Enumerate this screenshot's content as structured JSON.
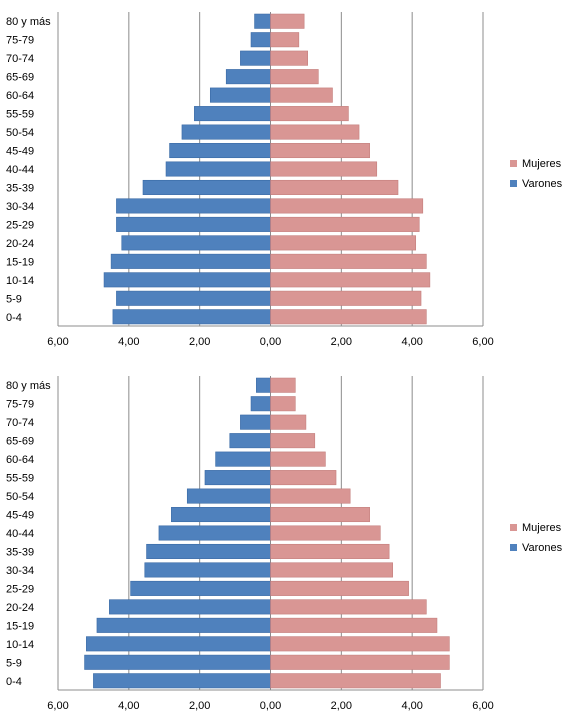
{
  "chart_data": [
    {
      "type": "bar",
      "orientation": "horizontal",
      "subtype": "population-pyramid",
      "categories": [
        "0-4",
        "5-9",
        "10-14",
        "15-19",
        "20-24",
        "25-29",
        "30-34",
        "35-39",
        "40-44",
        "45-49",
        "50-54",
        "55-59",
        "60-64",
        "65-69",
        "70-74",
        "75-79",
        "80 y más"
      ],
      "series": [
        {
          "name": "Varones",
          "color": "#4f81bd",
          "side": "left",
          "values": [
            4.45,
            4.35,
            4.7,
            4.5,
            4.2,
            4.35,
            4.35,
            3.6,
            2.95,
            2.85,
            2.5,
            2.15,
            1.7,
            1.25,
            0.85,
            0.55,
            0.45
          ]
        },
        {
          "name": "Mujeres",
          "color": "#d99694",
          "side": "right",
          "values": [
            4.4,
            4.25,
            4.5,
            4.4,
            4.1,
            4.2,
            4.3,
            3.6,
            3.0,
            2.8,
            2.5,
            2.2,
            1.75,
            1.35,
            1.05,
            0.8,
            0.95
          ]
        }
      ],
      "x_ticks": [
        "6,00",
        "4,00",
        "2,00",
        "0,00",
        "2,00",
        "4,00",
        "6,00"
      ],
      "xlim": [
        -6,
        6
      ],
      "grid": true,
      "legend_position": "right",
      "legend": [
        "Mujeres",
        "Varones"
      ]
    },
    {
      "type": "bar",
      "orientation": "horizontal",
      "subtype": "population-pyramid",
      "categories": [
        "0-4",
        "5-9",
        "10-14",
        "15-19",
        "20-24",
        "25-29",
        "30-34",
        "35-39",
        "40-44",
        "45-49",
        "50-54",
        "55-59",
        "60-64",
        "65-69",
        "70-74",
        "75-79",
        "80 y más"
      ],
      "series": [
        {
          "name": "Varones",
          "color": "#4f81bd",
          "side": "left",
          "values": [
            5.0,
            5.25,
            5.2,
            4.9,
            4.55,
            3.95,
            3.55,
            3.5,
            3.15,
            2.8,
            2.35,
            1.85,
            1.55,
            1.15,
            0.85,
            0.55,
            0.4
          ]
        },
        {
          "name": "Mujeres",
          "color": "#d99694",
          "side": "right",
          "values": [
            4.8,
            5.05,
            5.05,
            4.7,
            4.4,
            3.9,
            3.45,
            3.35,
            3.1,
            2.8,
            2.25,
            1.85,
            1.55,
            1.25,
            1.0,
            0.7,
            0.7
          ]
        }
      ],
      "x_ticks": [
        "6,00",
        "4,00",
        "2,00",
        "0,00",
        "2,00",
        "4,00",
        "6,00"
      ],
      "xlim": [
        -6,
        6
      ],
      "grid": true,
      "legend_position": "right",
      "legend": [
        "Mujeres",
        "Varones"
      ]
    }
  ]
}
